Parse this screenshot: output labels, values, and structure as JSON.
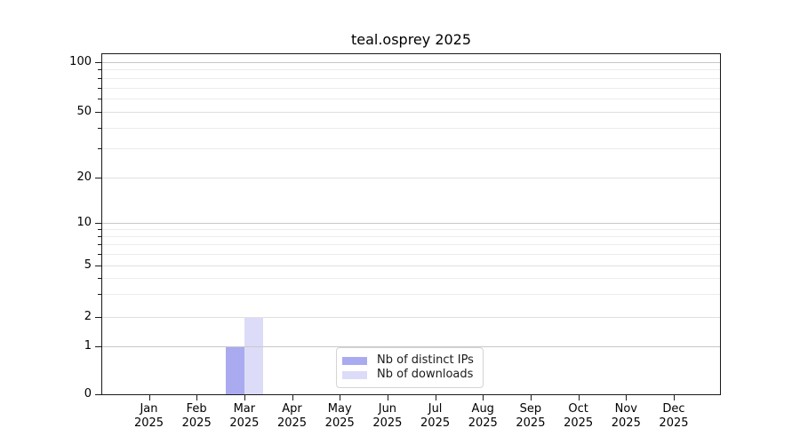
{
  "figure": {
    "background": "#ffffff"
  },
  "chart_data": {
    "type": "bar",
    "title": "teal.osprey 2025",
    "categories": [
      "Jan 2025",
      "Feb 2025",
      "Mar 2025",
      "Apr 2025",
      "May 2025",
      "Jun 2025",
      "Jul 2025",
      "Aug 2025",
      "Sep 2025",
      "Oct 2025",
      "Nov 2025",
      "Dec 2025"
    ],
    "series": [
      {
        "name": "Nb of distinct IPs",
        "color": "#aaaaf0",
        "values": [
          0,
          0,
          1,
          0,
          0,
          0,
          0,
          0,
          0,
          0,
          0,
          0
        ]
      },
      {
        "name": "Nb of downloads",
        "color": "#dcdcf8",
        "values": [
          0,
          0,
          2,
          0,
          0,
          0,
          0,
          0,
          0,
          0,
          0,
          0
        ]
      }
    ],
    "xlabel": "",
    "ylabel": "",
    "yscale": "symlog (linear 0-1, log above 1)",
    "ylim": [
      0,
      113
    ],
    "y_major_ticks": [
      0,
      1,
      2,
      5,
      10,
      20,
      50,
      100
    ],
    "y_minor_ticks": [
      3,
      4,
      6,
      7,
      8,
      9,
      30,
      40,
      60,
      70,
      80,
      90
    ],
    "grid": "horizontal major and minor gridlines",
    "legend_position": "lower center",
    "colors": {
      "grid_decade": "#c8c8c8",
      "grid_major": "#e0e0e0",
      "grid_minor": "#ececec",
      "axis": "#1a1a1a",
      "legend_border": "#d4d4d4"
    }
  }
}
